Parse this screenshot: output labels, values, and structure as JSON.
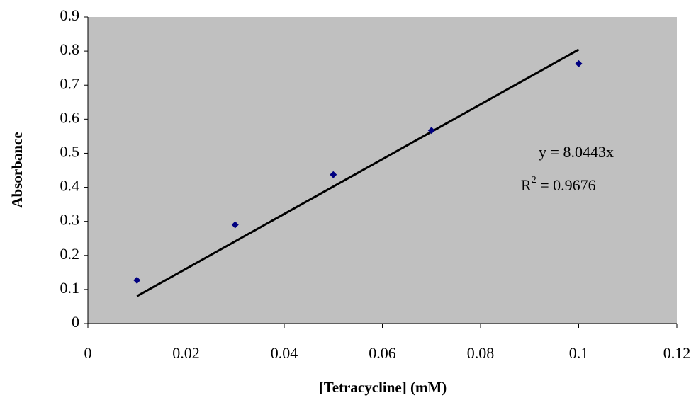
{
  "chart_data": {
    "type": "scatter",
    "x_label": "[Tetracycline] (mM)",
    "y_label": "Absorbance",
    "x": [
      0.01,
      0.03,
      0.05,
      0.07,
      0.1
    ],
    "series": [
      {
        "color": "#000080",
        "values": [
          0.127,
          0.29,
          0.437,
          0.567,
          0.763
        ]
      }
    ],
    "trendline": {
      "color": "#000000",
      "x": [
        0.01,
        0.1
      ],
      "values": [
        0.0804,
        0.8044
      ]
    },
    "equation": "y = 8.0443x",
    "r_squared": {
      "prefix": "R",
      "sup": "2",
      "text": " = 0.9676"
    },
    "xlim": [
      0,
      0.12
    ],
    "xticks": [
      0,
      0.02,
      0.04,
      0.06,
      0.08,
      0.1,
      0.12
    ],
    "ylim": [
      0,
      0.9
    ],
    "yticks": [
      0,
      0.1,
      0.2,
      0.3,
      0.4,
      0.5,
      0.6,
      0.7,
      0.8,
      0.9
    ],
    "grid": false,
    "plot_background": "#c0c0c0"
  }
}
